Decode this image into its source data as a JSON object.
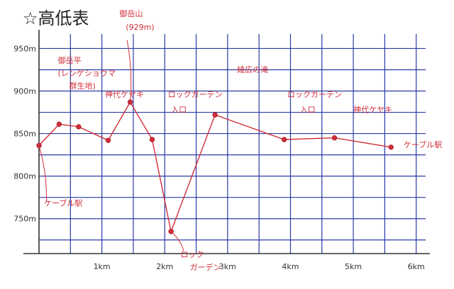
{
  "chart_data": {
    "type": "line",
    "title": "☆高低表",
    "xlabel": "",
    "ylabel": "",
    "xlim": [
      0,
      6.15
    ],
    "ylim": [
      709,
      967
    ],
    "grid": true,
    "x_ticks": [
      {
        "value": 1,
        "label": "1km"
      },
      {
        "value": 2,
        "label": "2km"
      },
      {
        "value": 3,
        "label": "3km"
      },
      {
        "value": 4,
        "label": "4km"
      },
      {
        "value": 5,
        "label": "5km"
      },
      {
        "value": 6,
        "label": "6km"
      }
    ],
    "y_ticks": [
      {
        "value": 750,
        "label": "750m"
      },
      {
        "value": 800,
        "label": "800m"
      },
      {
        "value": 850,
        "label": "850m"
      },
      {
        "value": 900,
        "label": "900m"
      },
      {
        "value": 950,
        "label": "950m"
      }
    ],
    "series": [
      {
        "name": "",
        "color": "#d0303a",
        "x": [
          0.0,
          0.32,
          0.63,
          1.1,
          1.45,
          1.8,
          2.1,
          2.8,
          3.9,
          4.7,
          5.6
        ],
        "y": [
          836,
          861,
          858,
          842,
          887,
          843,
          735,
          872,
          843,
          845,
          834
        ]
      }
    ],
    "annotations": [
      {
        "text": "御岳平",
        "x": 0.3,
        "y": 933
      },
      {
        "text": "(レンゲショウマ",
        "x": 0.3,
        "y": 918
      },
      {
        "text": "群生地)",
        "x": 0.48,
        "y": 903
      },
      {
        "text": "御岳山",
        "x": 1.28,
        "y": 988
      },
      {
        "text": "(929m)",
        "x": 1.38,
        "y": 972
      },
      {
        "text": "神代ケヤキ",
        "x": 1.05,
        "y": 893
      },
      {
        "text": "ロックガーデン",
        "x": 2.05,
        "y": 893
      },
      {
        "text": "入口",
        "x": 2.1,
        "y": 875
      },
      {
        "text": "綾広の滝",
        "x": 3.15,
        "y": 922
      },
      {
        "text": "ロックガーデン",
        "x": 3.95,
        "y": 893
      },
      {
        "text": "入口",
        "x": 4.15,
        "y": 875
      },
      {
        "text": "神代ケヤキ",
        "x": 5.0,
        "y": 875
      },
      {
        "text": "ケーブル駅",
        "x": 5.8,
        "y": 834
      },
      {
        "text": "ケーブル駅",
        "x": 0.08,
        "y": 765
      },
      {
        "text": "ロック",
        "x": 2.25,
        "y": 705
      },
      {
        "text": "ガーデン",
        "x": 2.4,
        "y": 690
      }
    ]
  }
}
